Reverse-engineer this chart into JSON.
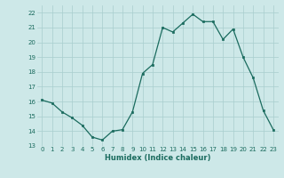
{
  "x_values": [
    0,
    1,
    2,
    3,
    4,
    5,
    6,
    7,
    8,
    9,
    10,
    11,
    12,
    13,
    14,
    15,
    16,
    17,
    18,
    19,
    20,
    21,
    22,
    23
  ],
  "y_values": [
    16.1,
    15.9,
    15.3,
    14.9,
    14.4,
    13.6,
    13.4,
    14.0,
    14.1,
    15.3,
    17.9,
    18.5,
    21.0,
    20.7,
    21.3,
    21.9,
    21.4,
    21.4,
    20.2,
    20.9,
    19.0,
    17.6,
    15.4,
    14.1
  ],
  "xlabel": "Humidex (Indice chaleur)",
  "ylim": [
    13,
    22.5
  ],
  "xlim": [
    -0.5,
    23.5
  ],
  "yticks": [
    13,
    14,
    15,
    16,
    17,
    18,
    19,
    20,
    21,
    22
  ],
  "xticks": [
    0,
    1,
    2,
    3,
    4,
    5,
    6,
    7,
    8,
    9,
    10,
    11,
    12,
    13,
    14,
    15,
    16,
    17,
    18,
    19,
    20,
    21,
    22,
    23
  ],
  "line_color": "#1a6b5e",
  "marker_color": "#1a6b5e",
  "bg_color": "#cde8e8",
  "grid_color": "#a8cece",
  "tick_color": "#1a6b5e",
  "label_color": "#1a6b5e"
}
